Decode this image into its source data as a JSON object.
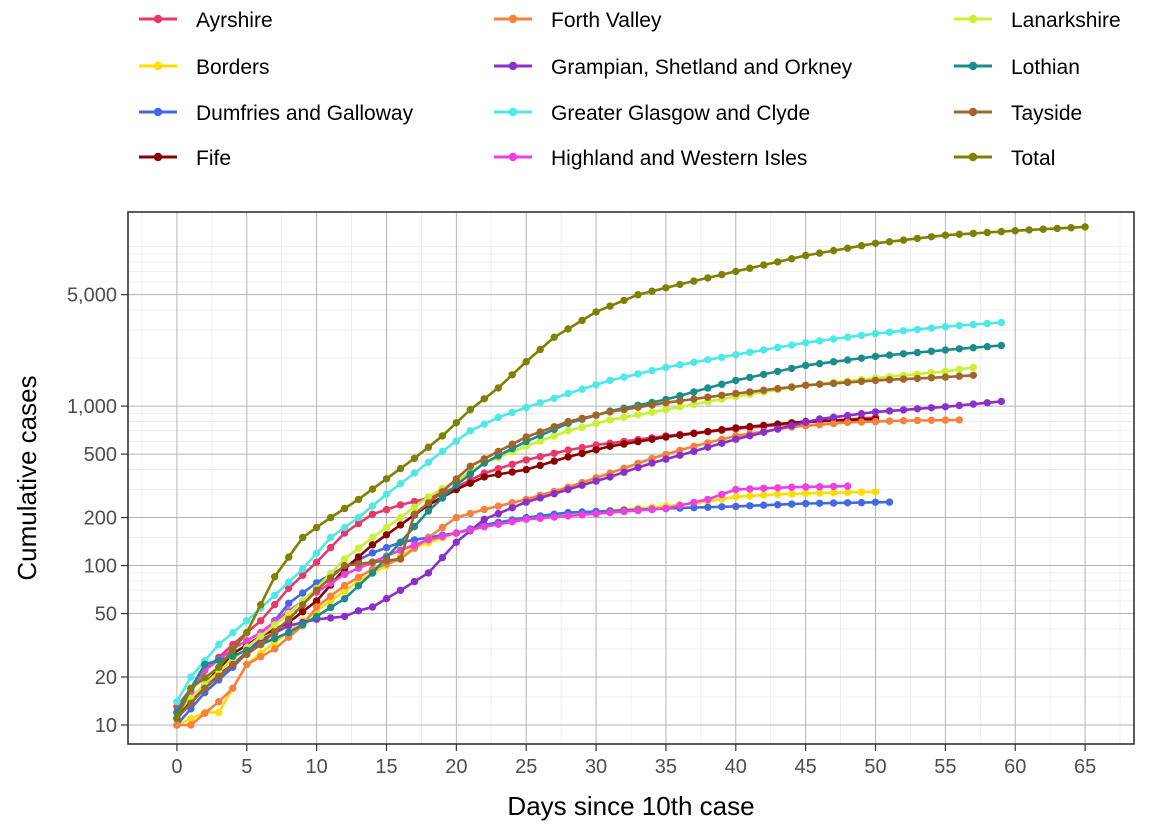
{
  "chart_data": {
    "type": "line",
    "title": "",
    "xlabel": "Days since 10th case",
    "ylabel": "Cumulative cases",
    "xlim": [
      -3.5,
      68.5
    ],
    "ylim": [
      7.6,
      16500
    ],
    "yscale": "log10",
    "grid": true,
    "legend_position": "top",
    "x_ticks": [
      0,
      5,
      10,
      15,
      20,
      25,
      30,
      35,
      40,
      45,
      50,
      55,
      60,
      65
    ],
    "y_ticks": [
      {
        "value": 10,
        "label": "10"
      },
      {
        "value": 20,
        "label": "20"
      },
      {
        "value": 50,
        "label": "50"
      },
      {
        "value": 100,
        "label": "100"
      },
      {
        "value": 200,
        "label": "200"
      },
      {
        "value": 500,
        "label": "500"
      },
      {
        "value": 1000,
        "label": "1,000"
      },
      {
        "value": 5000,
        "label": "5,000"
      }
    ],
    "series": [
      {
        "name": "Ayrshire",
        "color": "#e8386b",
        "keyframes": [
          [
            0,
            13
          ],
          [
            2,
            22
          ],
          [
            4,
            32
          ],
          [
            6,
            45
          ],
          [
            8,
            72
          ],
          [
            10,
            105
          ],
          [
            12,
            160
          ],
          [
            14,
            210
          ],
          [
            16,
            240
          ],
          [
            18,
            265
          ],
          [
            20,
            310
          ],
          [
            22,
            380
          ],
          [
            25,
            460
          ],
          [
            28,
            530
          ],
          [
            30,
            570
          ],
          [
            35,
            650
          ],
          [
            40,
            720
          ],
          [
            45,
            790
          ],
          [
            50,
            850
          ]
        ]
      },
      {
        "name": "Borders",
        "color": "#ffdd00",
        "keyframes": [
          [
            0,
            10
          ],
          [
            2,
            12
          ],
          [
            3,
            12
          ],
          [
            4,
            17
          ],
          [
            5,
            24
          ],
          [
            7,
            33
          ],
          [
            9,
            45
          ],
          [
            11,
            60
          ],
          [
            13,
            80
          ],
          [
            15,
            100
          ],
          [
            17,
            130
          ],
          [
            20,
            160
          ],
          [
            22,
            178
          ],
          [
            25,
            198
          ],
          [
            28,
            210
          ],
          [
            31,
            222
          ],
          [
            34,
            232
          ],
          [
            37,
            245
          ],
          [
            40,
            270
          ],
          [
            43,
            280
          ],
          [
            46,
            285
          ],
          [
            50,
            290
          ]
        ]
      },
      {
        "name": "Dumfries and Galloway",
        "color": "#4169e1",
        "keyframes": [
          [
            0,
            10
          ],
          [
            2,
            16
          ],
          [
            4,
            23
          ],
          [
            6,
            35
          ],
          [
            8,
            58
          ],
          [
            10,
            78
          ],
          [
            12,
            98
          ],
          [
            14,
            120
          ],
          [
            16,
            140
          ],
          [
            18,
            150
          ],
          [
            20,
            160
          ],
          [
            22,
            180
          ],
          [
            25,
            200
          ],
          [
            28,
            215
          ],
          [
            31,
            220
          ],
          [
            35,
            228
          ],
          [
            40,
            235
          ],
          [
            45,
            245
          ],
          [
            51,
            250
          ]
        ]
      },
      {
        "name": "Fife",
        "color": "#8b0000",
        "keyframes": [
          [
            0,
            11
          ],
          [
            2,
            18
          ],
          [
            4,
            28
          ],
          [
            6,
            36
          ],
          [
            8,
            44
          ],
          [
            10,
            60
          ],
          [
            12,
            95
          ],
          [
            14,
            135
          ],
          [
            16,
            180
          ],
          [
            18,
            240
          ],
          [
            20,
            300
          ],
          [
            22,
            360
          ],
          [
            25,
            400
          ],
          [
            28,
            480
          ],
          [
            31,
            560
          ],
          [
            35,
            640
          ],
          [
            40,
            730
          ],
          [
            45,
            800
          ],
          [
            50,
            830
          ]
        ]
      },
      {
        "name": "Forth Valley",
        "color": "#f5823c",
        "keyframes": [
          [
            0,
            10
          ],
          [
            1,
            10
          ],
          [
            3,
            14
          ],
          [
            4,
            17
          ],
          [
            5,
            24
          ],
          [
            7,
            30
          ],
          [
            9,
            42
          ],
          [
            10,
            55
          ],
          [
            12,
            75
          ],
          [
            14,
            95
          ],
          [
            16,
            110
          ],
          [
            18,
            150
          ],
          [
            20,
            200
          ],
          [
            22,
            225
          ],
          [
            25,
            260
          ],
          [
            28,
            310
          ],
          [
            31,
            380
          ],
          [
            34,
            470
          ],
          [
            37,
            560
          ],
          [
            40,
            650
          ],
          [
            44,
            740
          ],
          [
            48,
            790
          ],
          [
            52,
            810
          ],
          [
            56,
            820
          ]
        ]
      },
      {
        "name": "Grampian, Shetland and Orkney",
        "color": "#8b2fc9",
        "keyframes": [
          [
            0,
            12
          ],
          [
            2,
            18
          ],
          [
            4,
            24
          ],
          [
            6,
            34
          ],
          [
            8,
            42
          ],
          [
            10,
            46
          ],
          [
            12,
            48
          ],
          [
            13,
            52
          ],
          [
            14,
            55
          ],
          [
            16,
            70
          ],
          [
            18,
            90
          ],
          [
            20,
            140
          ],
          [
            22,
            195
          ],
          [
            25,
            250
          ],
          [
            28,
            300
          ],
          [
            31,
            360
          ],
          [
            34,
            440
          ],
          [
            37,
            520
          ],
          [
            40,
            620
          ],
          [
            43,
            720
          ],
          [
            46,
            830
          ],
          [
            50,
            920
          ],
          [
            55,
            990
          ],
          [
            59,
            1070
          ]
        ]
      },
      {
        "name": "Greater Glasgow and Clyde",
        "color": "#4de8e8",
        "keyframes": [
          [
            0,
            14
          ],
          [
            1,
            20
          ],
          [
            3,
            32
          ],
          [
            5,
            45
          ],
          [
            7,
            65
          ],
          [
            9,
            95
          ],
          [
            11,
            150
          ],
          [
            13,
            200
          ],
          [
            15,
            280
          ],
          [
            17,
            380
          ],
          [
            19,
            520
          ],
          [
            21,
            700
          ],
          [
            23,
            850
          ],
          [
            25,
            980
          ],
          [
            28,
            1200
          ],
          [
            31,
            1450
          ],
          [
            35,
            1750
          ],
          [
            40,
            2100
          ],
          [
            45,
            2500
          ],
          [
            50,
            2850
          ],
          [
            55,
            3150
          ],
          [
            59,
            3350
          ]
        ]
      },
      {
        "name": "Highland and Western Isles",
        "color": "#ee3fe0",
        "keyframes": [
          [
            0,
            12
          ],
          [
            2,
            22
          ],
          [
            4,
            30
          ],
          [
            6,
            38
          ],
          [
            8,
            52
          ],
          [
            10,
            68
          ],
          [
            12,
            88
          ],
          [
            14,
            105
          ],
          [
            16,
            125
          ],
          [
            18,
            145
          ],
          [
            20,
            160
          ],
          [
            22,
            175
          ],
          [
            25,
            195
          ],
          [
            28,
            205
          ],
          [
            31,
            215
          ],
          [
            35,
            228
          ],
          [
            38,
            260
          ],
          [
            40,
            300
          ],
          [
            44,
            310
          ],
          [
            48,
            315
          ]
        ]
      },
      {
        "name": "Lanarkshire",
        "color": "#c8f034",
        "keyframes": [
          [
            0,
            12
          ],
          [
            2,
            18
          ],
          [
            4,
            26
          ],
          [
            6,
            36
          ],
          [
            8,
            50
          ],
          [
            10,
            72
          ],
          [
            12,
            110
          ],
          [
            14,
            150
          ],
          [
            16,
            200
          ],
          [
            18,
            270
          ],
          [
            20,
            340
          ],
          [
            22,
            440
          ],
          [
            25,
            560
          ],
          [
            28,
            700
          ],
          [
            31,
            820
          ],
          [
            35,
            950
          ],
          [
            40,
            1150
          ],
          [
            45,
            1350
          ],
          [
            50,
            1500
          ],
          [
            55,
            1650
          ],
          [
            57,
            1750
          ]
        ]
      },
      {
        "name": "Lothian",
        "color": "#1a8c8c",
        "keyframes": [
          [
            0,
            12
          ],
          [
            2,
            24
          ],
          [
            4,
            27
          ],
          [
            6,
            32
          ],
          [
            8,
            38
          ],
          [
            10,
            48
          ],
          [
            12,
            62
          ],
          [
            14,
            90
          ],
          [
            16,
            140
          ],
          [
            18,
            220
          ],
          [
            20,
            320
          ],
          [
            22,
            440
          ],
          [
            25,
            600
          ],
          [
            28,
            780
          ],
          [
            31,
            930
          ],
          [
            35,
            1100
          ],
          [
            40,
            1450
          ],
          [
            45,
            1800
          ],
          [
            50,
            2050
          ],
          [
            55,
            2250
          ],
          [
            59,
            2400
          ]
        ]
      },
      {
        "name": "Tayside",
        "color": "#a0652b",
        "keyframes": [
          [
            0,
            11
          ],
          [
            2,
            17
          ],
          [
            4,
            24
          ],
          [
            6,
            32
          ],
          [
            8,
            46
          ],
          [
            10,
            70
          ],
          [
            12,
            100
          ],
          [
            14,
            105
          ],
          [
            16,
            110
          ],
          [
            17,
            210
          ],
          [
            19,
            290
          ],
          [
            21,
            420
          ],
          [
            23,
            520
          ],
          [
            25,
            640
          ],
          [
            28,
            800
          ],
          [
            31,
            920
          ],
          [
            35,
            1050
          ],
          [
            40,
            1200
          ],
          [
            45,
            1350
          ],
          [
            50,
            1450
          ],
          [
            55,
            1520
          ],
          [
            57,
            1560
          ]
        ]
      },
      {
        "name": "Total",
        "color": "#808000",
        "keyframes": [
          [
            0,
            11
          ],
          [
            1,
            17
          ],
          [
            3,
            23
          ],
          [
            5,
            38
          ],
          [
            7,
            85
          ],
          [
            9,
            150
          ],
          [
            11,
            200
          ],
          [
            13,
            260
          ],
          [
            15,
            350
          ],
          [
            17,
            470
          ],
          [
            19,
            650
          ],
          [
            21,
            950
          ],
          [
            23,
            1300
          ],
          [
            25,
            1900
          ],
          [
            27,
            2700
          ],
          [
            30,
            3900
          ],
          [
            33,
            5000
          ],
          [
            36,
            5800
          ],
          [
            40,
            7000
          ],
          [
            45,
            8800
          ],
          [
            50,
            10500
          ],
          [
            55,
            11800
          ],
          [
            60,
            12600
          ],
          [
            65,
            13300
          ]
        ]
      }
    ]
  }
}
